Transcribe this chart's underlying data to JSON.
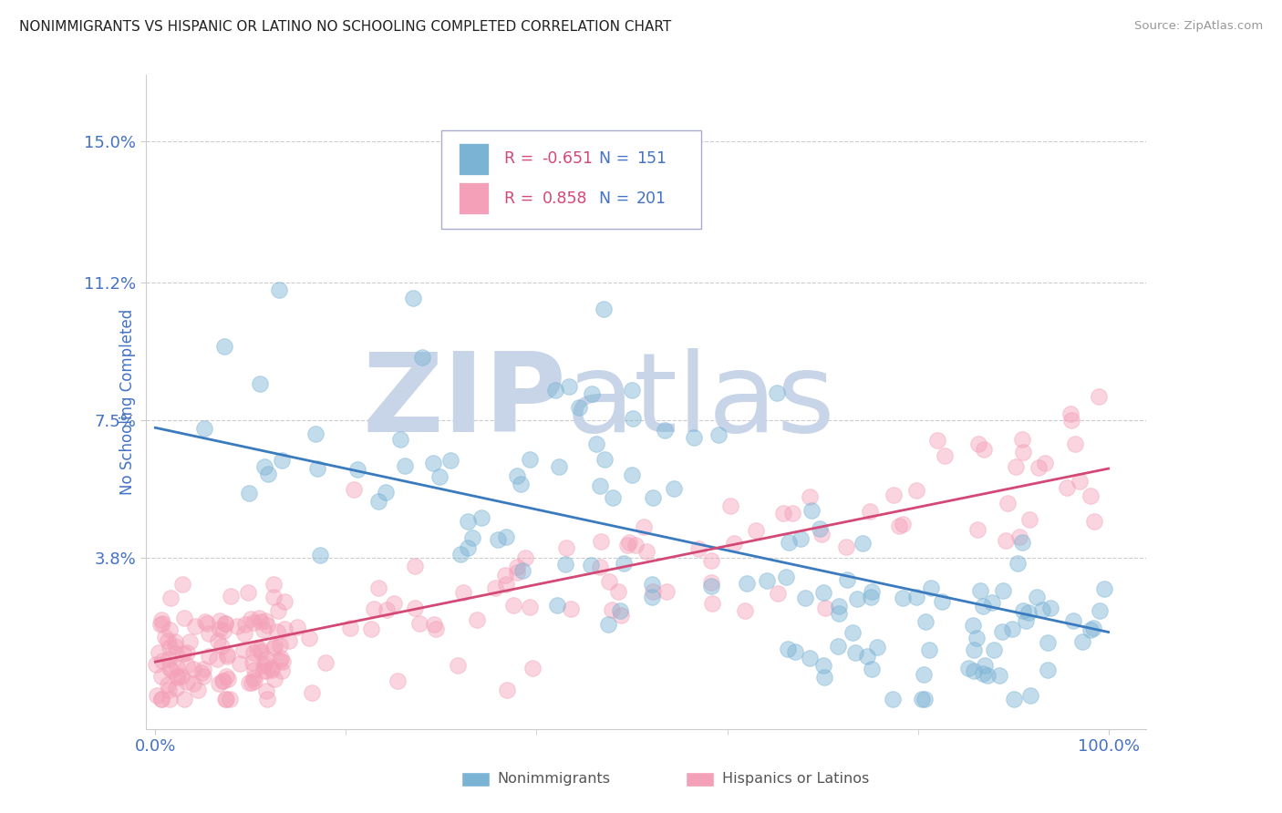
{
  "title": "NONIMMIGRANTS VS HISPANIC OR LATINO NO SCHOOLING COMPLETED CORRELATION CHART",
  "source": "Source: ZipAtlas.com",
  "ylabel": "No Schooling Completed",
  "ytick_labels": [
    "3.8%",
    "7.5%",
    "11.2%",
    "15.0%"
  ],
  "ytick_values": [
    0.038,
    0.075,
    0.112,
    0.15
  ],
  "xtick_labels": [
    "0.0%",
    "100.0%"
  ],
  "xlim": [
    -0.01,
    1.04
  ],
  "ylim": [
    -0.008,
    0.168
  ],
  "blue_R": -0.651,
  "blue_N": 151,
  "pink_R": 0.858,
  "pink_N": 201,
  "blue_color": "#7ab3d4",
  "pink_color": "#f4a0b8",
  "blue_line_color": "#3a7abf",
  "pink_line_color": "#d44875",
  "title_color": "#222222",
  "axis_label_color": "#4472c4",
  "tick_label_color": "#4472c4",
  "watermark_ZIP_color": "#c8d4e8",
  "watermark_atlas_color": "#c8d4e8",
  "legend_R_color": "#d44875",
  "legend_N_color": "#4472c4",
  "background_color": "#ffffff",
  "grid_color": "#cccccc",
  "blue_trend_start_y": 0.073,
  "blue_trend_end_y": 0.018,
  "pink_trend_start_y": 0.01,
  "pink_trend_end_y": 0.062
}
